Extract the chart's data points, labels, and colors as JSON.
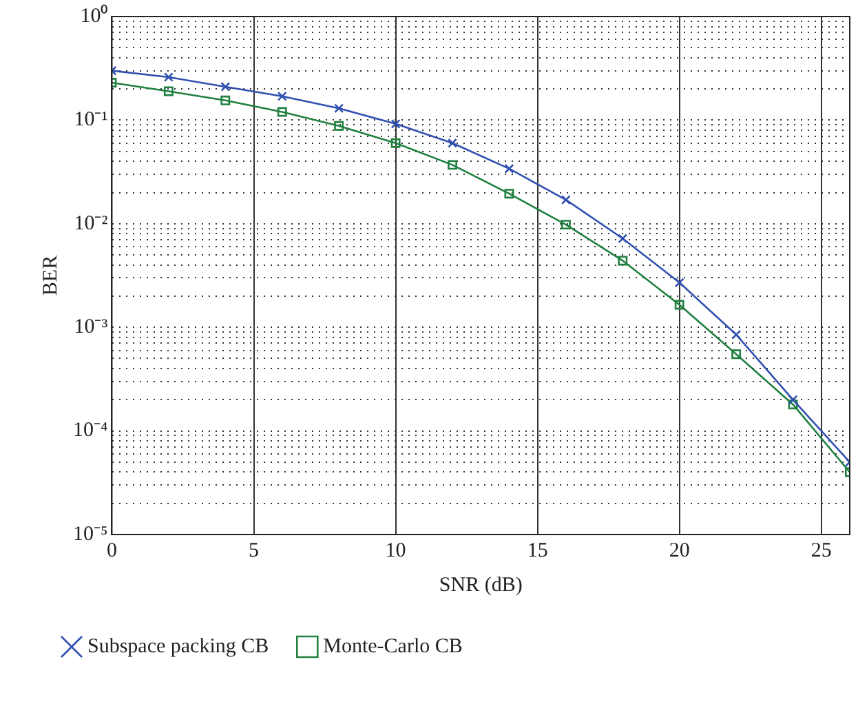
{
  "chart_data": {
    "type": "line",
    "xlabel": "SNR (dB)",
    "ylabel": "BER",
    "log": "y",
    "grid": true,
    "legend": "bottom",
    "line_style": "solid",
    "x": [
      0,
      2,
      4,
      6,
      8,
      10,
      12,
      14,
      16,
      18,
      20,
      22,
      24,
      26
    ],
    "xlim": [
      0,
      26
    ],
    "xticks": [
      0,
      5,
      10,
      15,
      20,
      25
    ],
    "ylim": [
      1e-05,
      1
    ],
    "yticks": [
      {
        "value": 1e-05,
        "label": "10⁻⁵"
      },
      {
        "value": 0.0001,
        "label": "10⁻⁴"
      },
      {
        "value": 0.001,
        "label": "10⁻³"
      },
      {
        "value": 0.01,
        "label": "10⁻²"
      },
      {
        "value": 0.1,
        "label": "10⁻¹"
      },
      {
        "value": 1,
        "label": "10⁰"
      }
    ],
    "series": [
      {
        "name": "Subspace packing CB",
        "color": "#3050b0",
        "marker": "cross",
        "values": [
          0.3,
          0.26,
          0.21,
          0.17,
          0.13,
          0.092,
          0.06,
          0.034,
          0.017,
          0.0072,
          0.0027,
          0.00085,
          0.0002,
          5e-05
        ]
      },
      {
        "name": "Monte-Carlo CB",
        "color": "#208040",
        "marker": "square",
        "values": [
          0.23,
          0.19,
          0.155,
          0.12,
          0.088,
          0.06,
          0.037,
          0.0195,
          0.0098,
          0.0044,
          0.00165,
          0.00055,
          0.00018,
          4e-05
        ]
      }
    ]
  }
}
